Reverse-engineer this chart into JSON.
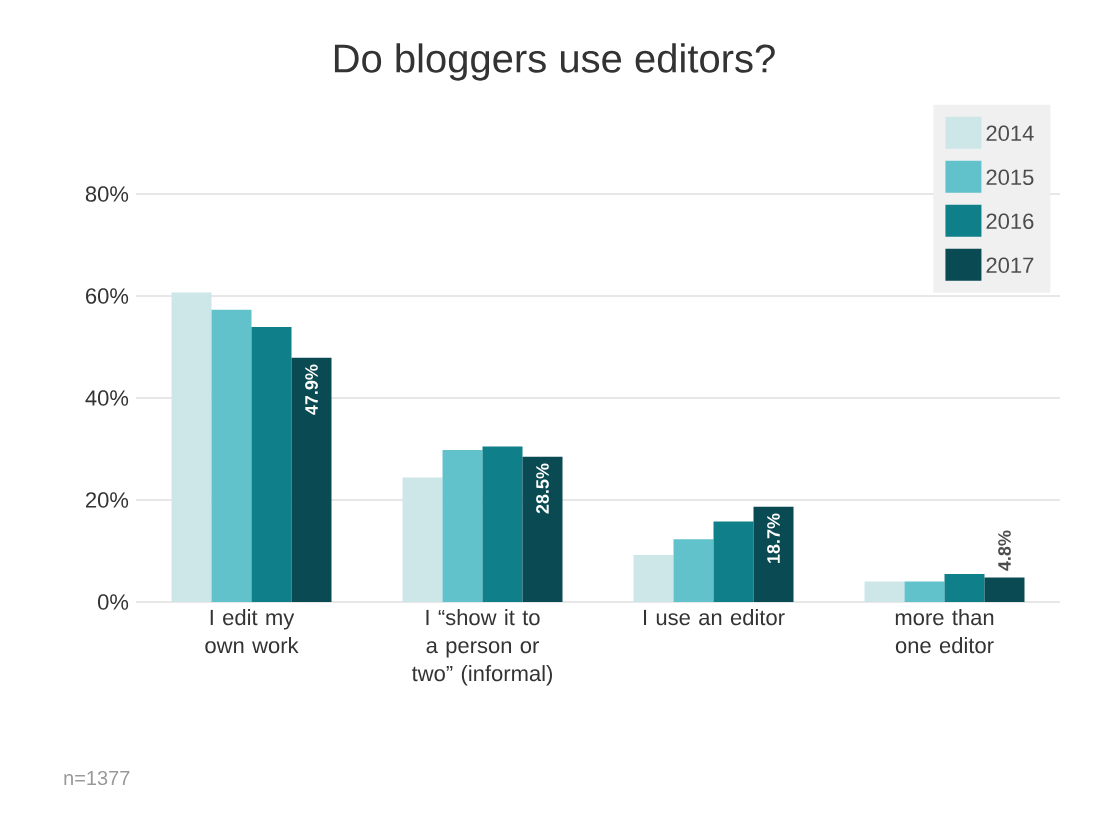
{
  "chart_data": {
    "type": "bar",
    "title": "Do bloggers use editors?",
    "categories": [
      "I edit my own work",
      "I “show it to a person or two” (informal)",
      "I use an editor",
      "more than one editor"
    ],
    "series": [
      {
        "name": "2014",
        "color": "#cde6e8",
        "values": [
          60.7,
          24.4,
          9.2,
          4.0
        ]
      },
      {
        "name": "2015",
        "color": "#62c2cc",
        "values": [
          57.3,
          29.8,
          12.3,
          4.0
        ]
      },
      {
        "name": "2016",
        "color": "#0f7f8a",
        "values": [
          53.9,
          30.5,
          15.8,
          5.5
        ]
      },
      {
        "name": "2017",
        "color": "#0a4a52",
        "values": [
          47.9,
          28.5,
          18.7,
          4.8
        ],
        "value_labels": [
          "47.9%",
          "28.5%",
          "18.7%",
          "4.8%"
        ]
      }
    ],
    "ylim": [
      0,
      80
    ],
    "yticks": [
      {
        "value": 0,
        "label": "0%"
      },
      {
        "value": 20,
        "label": "20%"
      },
      {
        "value": 40,
        "label": "40%"
      },
      {
        "value": 60,
        "label": "60%"
      },
      {
        "value": 80,
        "label": "80%"
      }
    ],
    "grid": "y",
    "legend": "top right",
    "annotations": [
      "n=1377"
    ]
  }
}
